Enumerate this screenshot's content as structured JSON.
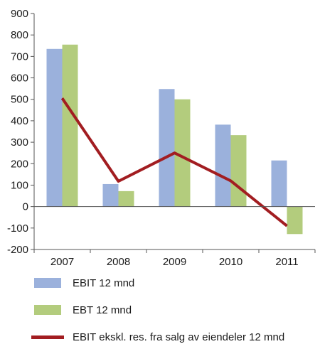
{
  "chart_data": {
    "type": "bar",
    "categories": [
      "2007",
      "2008",
      "2009",
      "2010",
      "2011"
    ],
    "series": [
      {
        "name": "EBIT 12 mnd",
        "type": "bar",
        "color": "#9bb1dc",
        "values": [
          735,
          105,
          548,
          382,
          215
        ]
      },
      {
        "name": "EBT 12 mnd",
        "type": "bar",
        "color": "#b3cc7d",
        "values": [
          755,
          72,
          500,
          333,
          -128
        ]
      },
      {
        "name": "EBIT ekskl. res. fra salg av eiendeler 12 mnd",
        "type": "line",
        "color": "#a21d21",
        "values": [
          505,
          118,
          250,
          120,
          -90
        ]
      }
    ],
    "ylim": [
      -200,
      900
    ],
    "yticks": [
      -200,
      -100,
      0,
      100,
      200,
      300,
      400,
      500,
      600,
      700,
      800,
      900
    ],
    "ytick_labels": [
      "-200",
      "-100",
      "0",
      "100",
      "200",
      "300",
      "400",
      "500",
      "600",
      "700",
      "800",
      "900"
    ],
    "grid": false,
    "legend": "bottom",
    "xlabel": "",
    "ylabel": "",
    "title": ""
  }
}
